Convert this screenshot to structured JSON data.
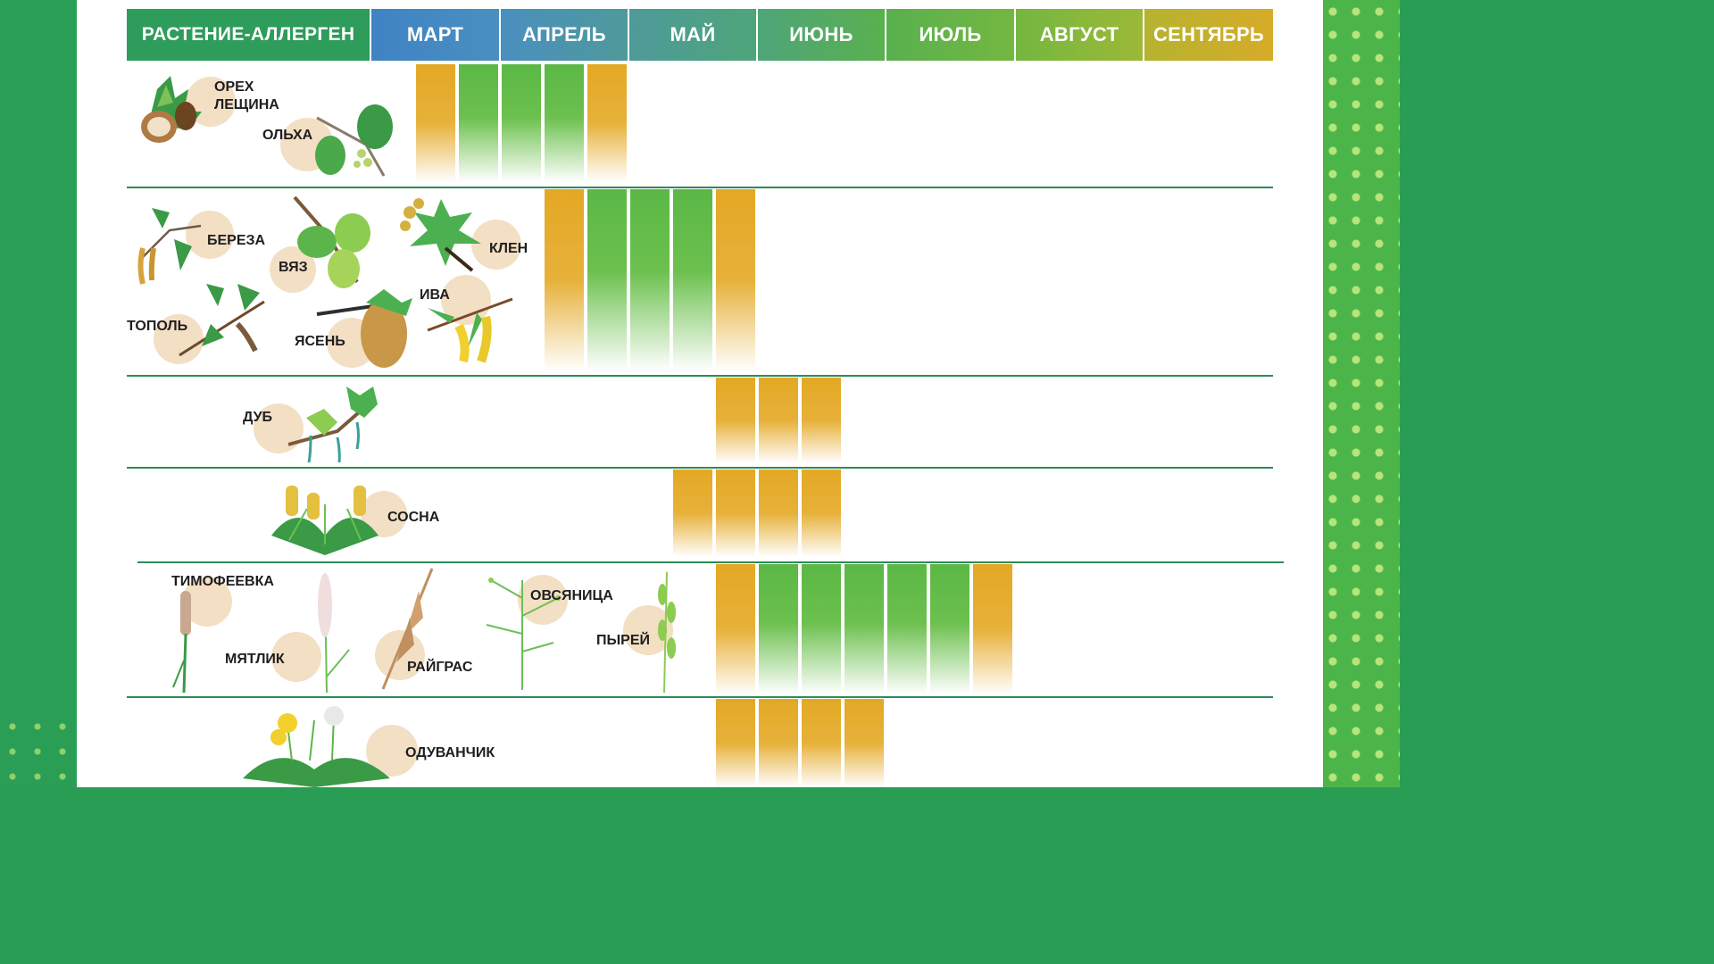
{
  "header": {
    "plant_col": "РАСТЕНИЕ-АЛЛЕРГЕН",
    "months": [
      "МАРТ",
      "АПРЕЛЬ",
      "МАЙ",
      "ИЮНЬ",
      "ИЮЛЬ",
      "АВГУСТ",
      "СЕНТЯБРЬ"
    ]
  },
  "rows": [
    {
      "plants": [
        "ОРЕХ ЛЕЩИНА",
        "ОЛЬХА"
      ],
      "bars": [
        "yellow",
        "green",
        "green",
        "green",
        "yellow"
      ]
    },
    {
      "plants": [
        "БЕРЕЗА",
        "ВЯЗ",
        "КЛЕН",
        "ИВА",
        "ТОПОЛЬ",
        "ЯСЕНЬ"
      ],
      "bars": [
        "yellow",
        "green",
        "green",
        "green",
        "yellow"
      ]
    },
    {
      "plants": [
        "ДУБ"
      ],
      "bars": [
        "yellow",
        "yellow",
        "yellow"
      ]
    },
    {
      "plants": [
        "СОСНА"
      ],
      "bars": [
        "yellow",
        "yellow",
        "yellow",
        "yellow"
      ]
    },
    {
      "plants": [
        "ТИМОФЕЕВКА",
        "ОВСЯНИЦА",
        "МЯТЛИК",
        "ПЫРЕЙ",
        "РАЙГРАС"
      ],
      "bars": [
        "yellow",
        "green",
        "green",
        "green",
        "green",
        "green",
        "yellow"
      ]
    },
    {
      "plants": [
        "ОДУВАНЧИК"
      ],
      "bars": [
        "yellow",
        "yellow",
        "yellow",
        "yellow"
      ]
    }
  ],
  "colors": {
    "yellow": "#e3a824",
    "green": "#5bb846",
    "divider": "#2e8b57"
  },
  "icons": [
    "hazelnut-icon",
    "alder-icon",
    "birch-icon",
    "elm-icon",
    "maple-icon",
    "willow-icon",
    "poplar-icon",
    "ash-icon",
    "oak-icon",
    "pine-icon",
    "timothy-grass-icon",
    "meadow-grass-icon",
    "ryegrass-icon",
    "fescue-icon",
    "couch-grass-icon",
    "dandelion-icon"
  ]
}
